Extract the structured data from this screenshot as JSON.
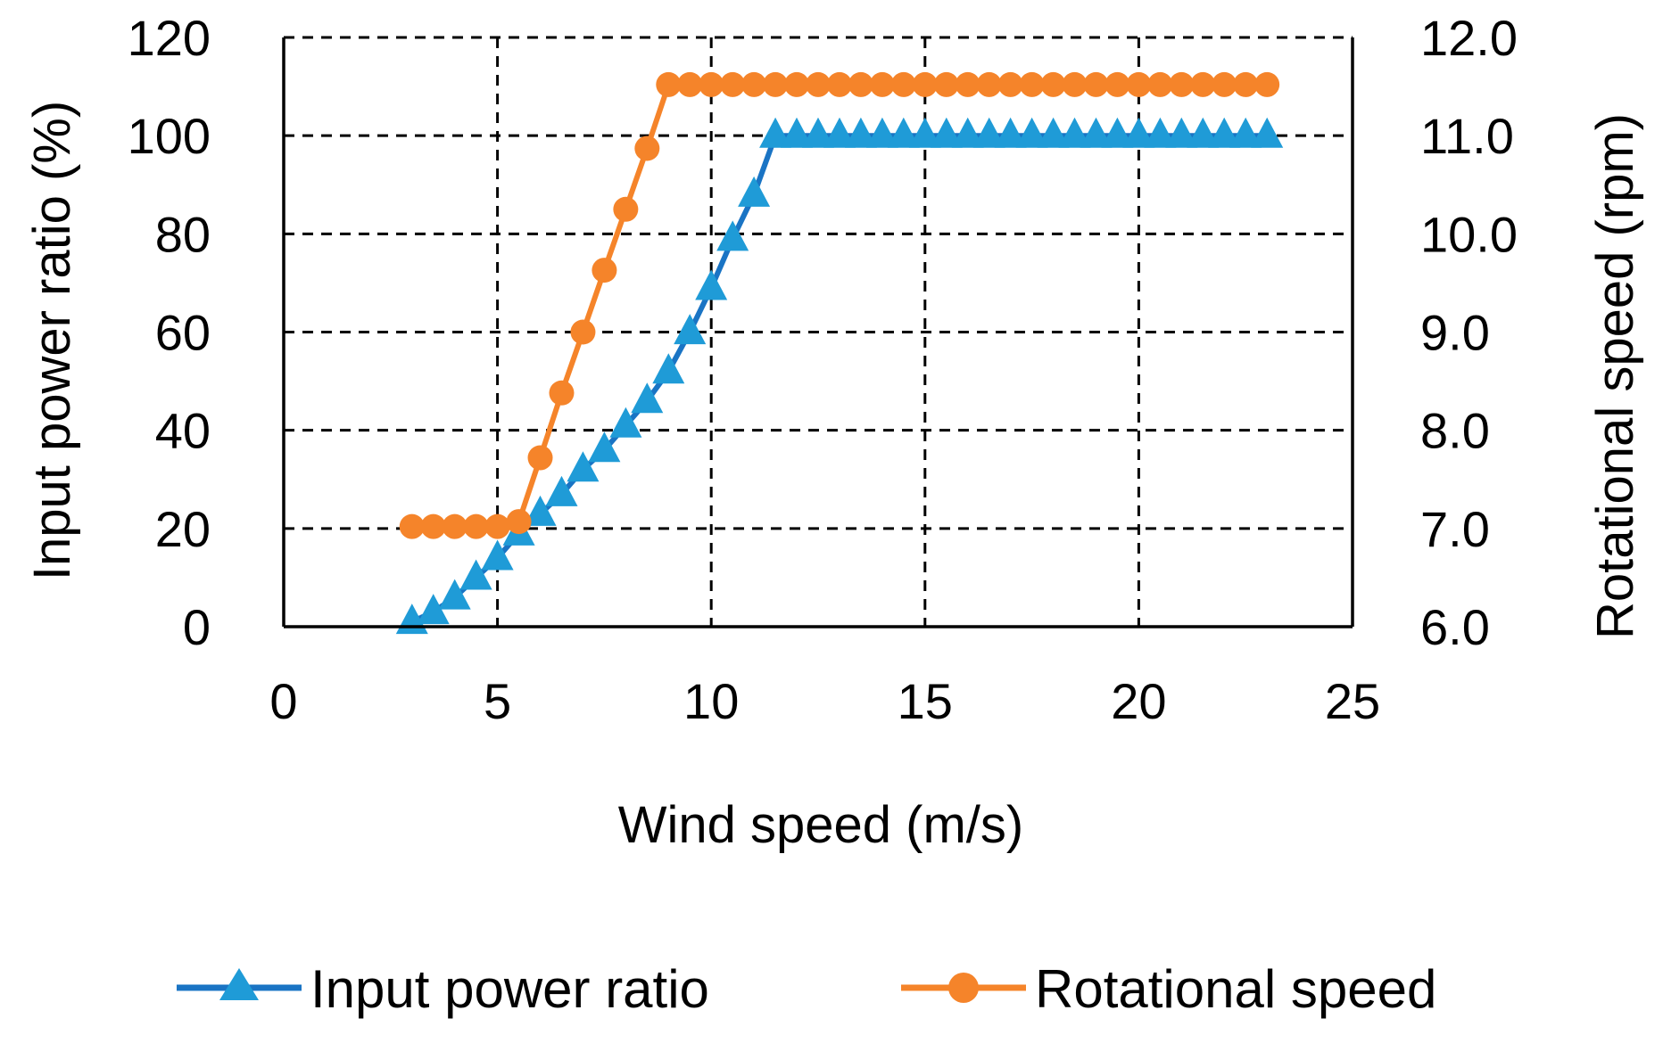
{
  "chart_data": {
    "type": "line",
    "title": "",
    "xlabel": "Wind speed (m/s)",
    "ylabel": "Input power ratio (%)",
    "y2label": "Rotational speed (rpm)",
    "xlim": [
      0,
      25
    ],
    "ylim": [
      0,
      120
    ],
    "y2lim": [
      6.0,
      12.0
    ],
    "xticks": [
      "0",
      "5",
      "10",
      "15",
      "20",
      "25"
    ],
    "yticks": [
      "0",
      "20",
      "40",
      "60",
      "80",
      "100",
      "120"
    ],
    "y2ticks": [
      "6.0",
      "7.0",
      "8.0",
      "9.0",
      "10.0",
      "11.0",
      "12.0"
    ],
    "grid": true,
    "legend_position": "bottom",
    "series": [
      {
        "name": "Input power ratio",
        "axis": "left",
        "marker": "triangle",
        "color": "#1f9bd7",
        "line_color": "#1a74c4",
        "x": [
          3.0,
          3.5,
          4.0,
          4.5,
          5.0,
          5.5,
          6.0,
          6.5,
          7.0,
          7.5,
          8.0,
          8.5,
          9.0,
          9.5,
          10.0,
          10.5,
          11.0,
          11.5,
          12.0,
          12.5,
          13.0,
          13.5,
          14.0,
          14.5,
          15.0,
          15.5,
          16.0,
          16.5,
          17.0,
          17.5,
          18.0,
          18.5,
          19.0,
          19.5,
          20.0,
          20.5,
          21.0,
          21.5,
          22.0,
          22.5,
          23.0
        ],
        "values": [
          1,
          3,
          6,
          10,
          14,
          19,
          23,
          27,
          32,
          36,
          41,
          46,
          52,
          60,
          69,
          79,
          88,
          100,
          100,
          100,
          100,
          100,
          100,
          100,
          100,
          100,
          100,
          100,
          100,
          100,
          100,
          100,
          100,
          100,
          100,
          100,
          100,
          100,
          100,
          100,
          100
        ]
      },
      {
        "name": "Rotational speed",
        "axis": "right",
        "marker": "circle",
        "color": "#f5842a",
        "line_color": "#f5842a",
        "x": [
          3.0,
          3.5,
          4.0,
          4.5,
          5.0,
          5.5,
          6.0,
          6.5,
          7.0,
          7.5,
          8.0,
          8.5,
          9.0,
          9.5,
          10.0,
          10.5,
          11.0,
          11.5,
          12.0,
          12.5,
          13.0,
          13.5,
          14.0,
          14.5,
          15.0,
          15.5,
          16.0,
          16.5,
          17.0,
          17.5,
          18.0,
          18.5,
          19.0,
          19.5,
          20.0,
          20.5,
          21.0,
          21.5,
          22.0,
          22.5,
          23.0
        ],
        "values": [
          7.02,
          7.02,
          7.02,
          7.02,
          7.02,
          7.07,
          7.72,
          8.38,
          9.0,
          9.63,
          10.25,
          10.87,
          11.52,
          11.52,
          11.52,
          11.52,
          11.52,
          11.52,
          11.52,
          11.52,
          11.52,
          11.52,
          11.52,
          11.52,
          11.52,
          11.52,
          11.52,
          11.52,
          11.52,
          11.52,
          11.52,
          11.52,
          11.52,
          11.52,
          11.52,
          11.52,
          11.52,
          11.52,
          11.52,
          11.52,
          11.52
        ]
      }
    ]
  }
}
